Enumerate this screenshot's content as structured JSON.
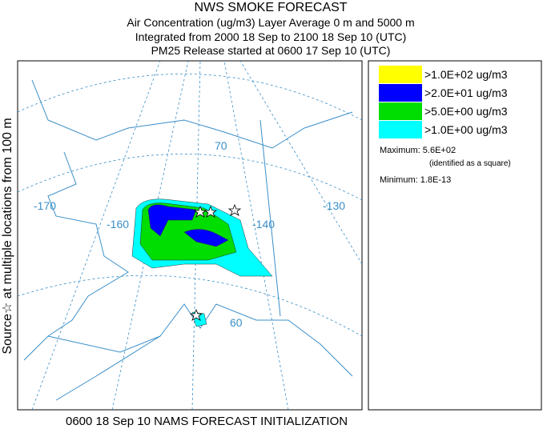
{
  "header": {
    "title": "NWS SMOKE FORECAST",
    "lines": [
      "Air Concentration (ug/m3) Layer Average    0 m and  5000 m",
      "Integrated from 2000 18 Sep to 2100 18 Sep 10 (UTC)",
      "PM25 Release started at 0600 17 Sep 10 (UTC)"
    ]
  },
  "side_label": "Source☆ at multiple locations   from   100 m",
  "map": {
    "graticule_labels": [
      "-170",
      "-160",
      "-140",
      "-130",
      "70",
      "60"
    ]
  },
  "legend": {
    "items": [
      {
        "label": ">1.0E+02 ug/m3",
        "color": "#ffff00"
      },
      {
        "label": ">2.0E+01 ug/m3",
        "color": "#0000ff"
      },
      {
        "label": ">5.0E+00 ug/m3",
        "color": "#00dd00"
      },
      {
        "label": ">1.0E+00 ug/m3",
        "color": "#00ffff"
      }
    ],
    "maximum": "Maximum: 5.6E+02",
    "maximum_note": "(identified as a square)",
    "minimum": "Minimum: 1.8E-13"
  },
  "footer": "0600 18 Sep 10 NAMS FORECAST INITIALIZATION"
}
